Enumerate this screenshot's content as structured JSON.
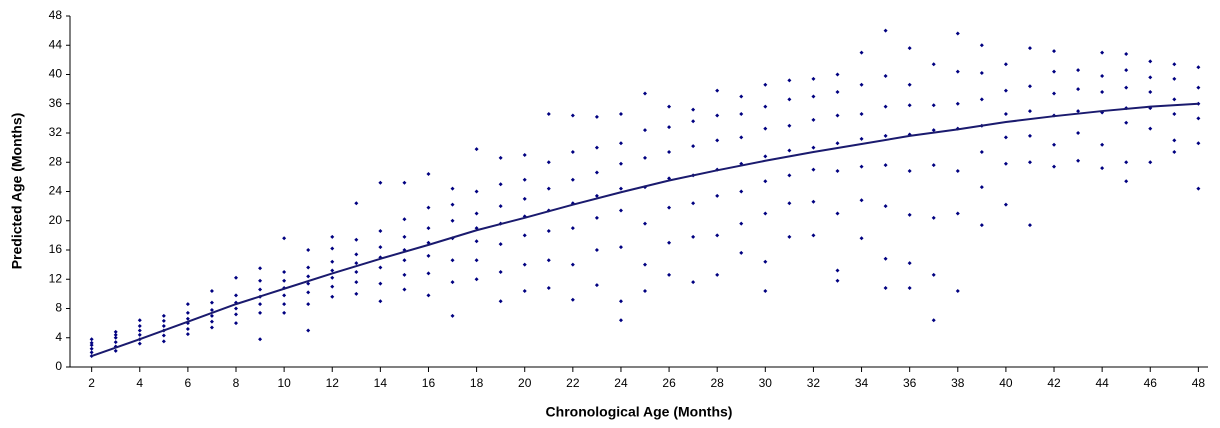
{
  "chart_data": {
    "type": "scatter",
    "xlabel": "Chronological Age (Months)",
    "ylabel": "Predicted Age (Months)",
    "color": "#000080",
    "trend_color": "#1a1a6e",
    "xlim": [
      1.1,
      48.4
    ],
    "ylim": [
      0,
      48
    ],
    "xticks": [
      2,
      4,
      6,
      8,
      10,
      12,
      14,
      16,
      18,
      20,
      22,
      24,
      26,
      28,
      30,
      32,
      34,
      36,
      38,
      40,
      42,
      44,
      46,
      48
    ],
    "yticks": [
      0,
      4,
      8,
      12,
      16,
      20,
      24,
      28,
      32,
      36,
      40,
      44,
      48
    ],
    "groups": [
      {
        "x": 2,
        "values": [
          1.5,
          2.0,
          2.5,
          3.0,
          3.3,
          3.8
        ]
      },
      {
        "x": 3,
        "values": [
          2.2,
          2.8,
          3.4,
          4.0,
          4.4,
          4.8
        ]
      },
      {
        "x": 4,
        "values": [
          3.2,
          3.8,
          4.4,
          5.0,
          5.6,
          6.4
        ]
      },
      {
        "x": 5,
        "values": [
          3.5,
          4.3,
          5.0,
          5.6,
          6.3,
          7.0
        ]
      },
      {
        "x": 6,
        "values": [
          4.5,
          5.2,
          6.0,
          6.6,
          7.4,
          8.6
        ]
      },
      {
        "x": 7,
        "values": [
          5.4,
          6.2,
          7.0,
          7.8,
          8.8,
          10.4
        ]
      },
      {
        "x": 8,
        "values": [
          6.0,
          7.2,
          8.0,
          8.8,
          9.8,
          12.2
        ]
      },
      {
        "x": 9,
        "values": [
          3.8,
          7.4,
          8.6,
          9.6,
          10.6,
          11.8,
          13.5
        ]
      },
      {
        "x": 10,
        "values": [
          7.4,
          8.6,
          9.8,
          10.8,
          11.8,
          13.0,
          17.6
        ]
      },
      {
        "x": 11,
        "values": [
          5.0,
          8.6,
          10.2,
          11.4,
          12.4,
          13.6,
          16.0
        ]
      },
      {
        "x": 12,
        "values": [
          9.6,
          11.0,
          12.2,
          13.2,
          14.4,
          16.2,
          17.8
        ]
      },
      {
        "x": 13,
        "values": [
          10.0,
          11.6,
          13.0,
          14.2,
          15.4,
          17.4,
          22.4
        ]
      },
      {
        "x": 14,
        "values": [
          9.0,
          11.4,
          13.6,
          15.0,
          16.4,
          18.6,
          25.2
        ]
      },
      {
        "x": 15,
        "values": [
          10.6,
          12.6,
          14.6,
          16.0,
          17.8,
          20.2,
          25.2
        ]
      },
      {
        "x": 16,
        "values": [
          9.8,
          12.8,
          15.2,
          17.0,
          19.0,
          21.8,
          26.4
        ]
      },
      {
        "x": 17,
        "values": [
          7.0,
          11.6,
          14.6,
          17.6,
          20.0,
          22.2,
          24.4
        ]
      },
      {
        "x": 18,
        "values": [
          12.0,
          14.6,
          17.2,
          19.0,
          21.0,
          24.0,
          29.8
        ]
      },
      {
        "x": 19,
        "values": [
          9.0,
          13.0,
          16.8,
          19.6,
          22.0,
          25.0,
          28.6
        ]
      },
      {
        "x": 20,
        "values": [
          10.4,
          14.0,
          18.0,
          20.6,
          23.0,
          25.6,
          29.0
        ]
      },
      {
        "x": 21,
        "values": [
          10.8,
          14.6,
          18.6,
          21.4,
          24.4,
          28.0,
          34.6
        ]
      },
      {
        "x": 22,
        "values": [
          9.2,
          14.0,
          19.0,
          22.4,
          25.6,
          29.4,
          34.4
        ]
      },
      {
        "x": 23,
        "values": [
          11.2,
          16.0,
          20.4,
          23.4,
          26.6,
          30.0,
          34.2
        ]
      },
      {
        "x": 24,
        "values": [
          6.4,
          9.0,
          16.4,
          21.4,
          24.4,
          27.8,
          30.6,
          34.6
        ]
      },
      {
        "x": 25,
        "values": [
          10.4,
          14.0,
          19.6,
          24.6,
          28.6,
          32.4,
          37.4
        ]
      },
      {
        "x": 26,
        "values": [
          12.6,
          17.0,
          21.8,
          25.8,
          29.4,
          32.8,
          35.6
        ]
      },
      {
        "x": 27,
        "values": [
          11.6,
          17.8,
          22.4,
          26.2,
          30.2,
          33.6,
          35.2
        ]
      },
      {
        "x": 28,
        "values": [
          12.6,
          18.0,
          23.4,
          27.0,
          31.0,
          34.4,
          37.8
        ]
      },
      {
        "x": 29,
        "values": [
          15.6,
          19.6,
          24.0,
          27.8,
          31.4,
          34.6,
          37.0
        ]
      },
      {
        "x": 30,
        "values": [
          10.4,
          14.4,
          21.0,
          25.4,
          28.8,
          32.6,
          35.6,
          38.6
        ]
      },
      {
        "x": 31,
        "values": [
          17.8,
          22.4,
          26.2,
          29.6,
          33.0,
          36.6,
          39.2
        ]
      },
      {
        "x": 32,
        "values": [
          18.0,
          22.6,
          27.0,
          30.0,
          33.8,
          37.0,
          39.4
        ]
      },
      {
        "x": 33,
        "values": [
          11.8,
          13.2,
          21.0,
          26.8,
          30.6,
          34.4,
          37.6,
          40.0
        ]
      },
      {
        "x": 34,
        "values": [
          17.6,
          22.8,
          27.4,
          31.2,
          34.6,
          38.6,
          43.0
        ]
      },
      {
        "x": 35,
        "values": [
          10.8,
          14.8,
          22.0,
          27.6,
          31.6,
          35.6,
          39.8,
          46.0
        ]
      },
      {
        "x": 36,
        "values": [
          10.8,
          14.2,
          20.8,
          26.8,
          31.8,
          35.8,
          38.6,
          43.6
        ]
      },
      {
        "x": 37,
        "values": [
          6.4,
          12.6,
          20.4,
          27.6,
          32.4,
          35.8,
          41.4
        ]
      },
      {
        "x": 38,
        "values": [
          10.4,
          21.0,
          26.8,
          32.6,
          36.0,
          40.4,
          45.6
        ]
      },
      {
        "x": 39,
        "values": [
          19.4,
          24.6,
          29.4,
          33.0,
          36.6,
          40.2,
          44.0
        ]
      },
      {
        "x": 40,
        "values": [
          22.2,
          27.8,
          31.4,
          34.6,
          37.8,
          41.4
        ]
      },
      {
        "x": 41,
        "values": [
          19.4,
          28.0,
          31.6,
          35.0,
          38.4,
          43.6
        ]
      },
      {
        "x": 42,
        "values": [
          27.4,
          30.4,
          34.4,
          37.4,
          40.4,
          43.2
        ]
      },
      {
        "x": 43,
        "values": [
          28.2,
          32.0,
          35.0,
          38.0,
          40.6
        ]
      },
      {
        "x": 44,
        "values": [
          27.2,
          30.4,
          34.8,
          37.6,
          39.8,
          43.0
        ]
      },
      {
        "x": 45,
        "values": [
          25.4,
          28.0,
          33.4,
          35.4,
          38.2,
          40.6,
          42.8
        ]
      },
      {
        "x": 46,
        "values": [
          28.0,
          32.6,
          35.4,
          37.6,
          39.6,
          41.8
        ]
      },
      {
        "x": 47,
        "values": [
          29.4,
          31.0,
          34.6,
          36.6,
          39.4,
          41.4
        ]
      },
      {
        "x": 48,
        "values": [
          24.4,
          30.6,
          34.0,
          36.0,
          38.2,
          41.0
        ]
      }
    ],
    "trend": {
      "x": [
        2,
        4,
        6,
        8,
        10,
        12,
        14,
        16,
        18,
        20,
        22,
        24,
        26,
        28,
        30,
        32,
        34,
        36,
        38,
        40,
        42,
        44,
        46,
        48
      ],
      "values": [
        1.5,
        3.8,
        6.2,
        8.6,
        10.7,
        12.8,
        14.8,
        16.7,
        18.7,
        20.4,
        22.2,
        23.9,
        25.5,
        26.9,
        28.2,
        29.4,
        30.5,
        31.6,
        32.5,
        33.5,
        34.3,
        35.0,
        35.6,
        36.0
      ]
    }
  }
}
